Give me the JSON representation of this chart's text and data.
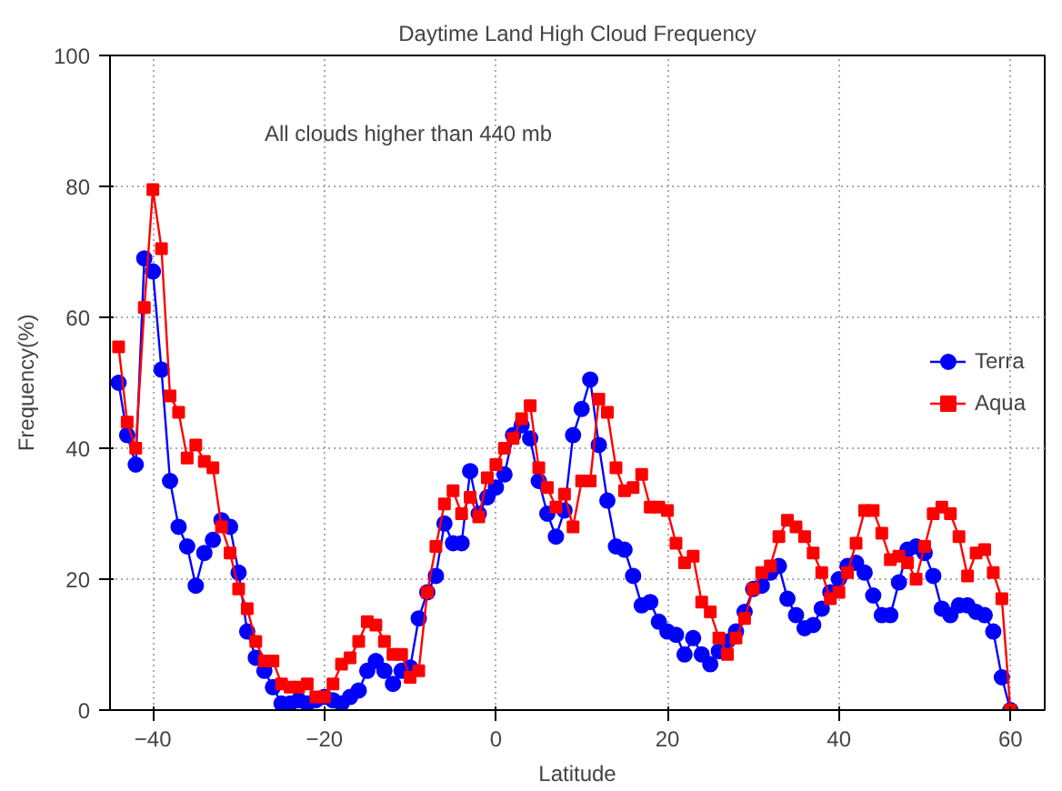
{
  "chart_data": {
    "type": "line",
    "title": "Daytime Land High Cloud Frequency",
    "xlabel": "Latitude",
    "ylabel": "Frequency(%)",
    "annotations": [
      "All clouds higher than 440 mb"
    ],
    "x": [
      -44,
      -43,
      -42,
      -41,
      -40,
      -39,
      -38,
      -37,
      -36,
      -35,
      -34,
      -33,
      -32,
      -31,
      -30,
      -29,
      -28,
      -27,
      -26,
      -25,
      -24,
      -23,
      -22,
      -21,
      -20,
      -19,
      -18,
      -17,
      -16,
      -15,
      -14,
      -13,
      -12,
      -11,
      -10,
      -9,
      -8,
      -7,
      -6,
      -5,
      -4,
      -3,
      -2,
      -1,
      0,
      1,
      2,
      3,
      4,
      5,
      6,
      7,
      8,
      9,
      10,
      11,
      12,
      13,
      14,
      15,
      16,
      17,
      18,
      19,
      20,
      21,
      22,
      23,
      24,
      25,
      26,
      27,
      28,
      29,
      30,
      31,
      32,
      33,
      34,
      35,
      36,
      37,
      38,
      39,
      40,
      41,
      42,
      43,
      44,
      45,
      46,
      47,
      48,
      49,
      50,
      51,
      52,
      53,
      54,
      55,
      56,
      57,
      58,
      59,
      60
    ],
    "series": [
      {
        "name": "Terra",
        "color": "#0000ff",
        "marker": "circle",
        "values": [
          50,
          42,
          37.5,
          69,
          67,
          52,
          35,
          28,
          25,
          19,
          24,
          26,
          29,
          28,
          21,
          12,
          8,
          6,
          3.5,
          1,
          1,
          1.5,
          1,
          1.5,
          2,
          1.5,
          1,
          2,
          3,
          6,
          7.5,
          6,
          4,
          6,
          6.5,
          14,
          18,
          20.5,
          28.5,
          25.5,
          25.5,
          36.5,
          30,
          32.5,
          34,
          36,
          42,
          43.5,
          41.5,
          35,
          30,
          26.5,
          30.5,
          42,
          46,
          50.5,
          40.5,
          32,
          25,
          24.5,
          20.5,
          16,
          16.5,
          13.5,
          12,
          11.5,
          8.5,
          11,
          8.5,
          7,
          9,
          10.5,
          12,
          15,
          18.5,
          19,
          21,
          22,
          17,
          14.5,
          12.5,
          13,
          15.5,
          18,
          20,
          22,
          22.5,
          21,
          17.5,
          14.5,
          14.5,
          19.5,
          24.5,
          25,
          24,
          20.5,
          15.5,
          14.5,
          16,
          16,
          15,
          14.5,
          12,
          5,
          0
        ]
      },
      {
        "name": "Aqua",
        "color": "#ff0000",
        "marker": "square",
        "values": [
          55.5,
          44,
          40,
          61.5,
          79.5,
          70.5,
          48,
          45.5,
          38.5,
          40.5,
          38,
          37,
          28,
          24,
          18.5,
          15.5,
          10.5,
          7.5,
          7.5,
          4,
          3.5,
          3.5,
          4,
          2,
          2,
          4,
          7,
          8,
          10.5,
          13.5,
          13,
          10.5,
          8.5,
          8.5,
          5,
          6,
          18,
          25,
          31.5,
          33.5,
          30,
          32.5,
          29.5,
          35.5,
          37.5,
          40,
          41.5,
          44.5,
          46.5,
          37,
          34,
          31,
          33,
          28,
          35,
          35,
          47.5,
          45.5,
          37,
          33.5,
          34,
          36,
          31,
          31,
          30.5,
          25.5,
          22.5,
          23.5,
          16.5,
          15,
          11,
          8.5,
          11,
          14,
          18.5,
          21,
          22,
          26.5,
          29,
          28,
          26.5,
          24,
          21,
          17,
          18,
          21,
          25.5,
          30.5,
          30.5,
          27,
          23,
          23.5,
          22.5,
          20,
          25,
          30,
          31,
          30,
          26.5,
          20.5,
          24,
          24.5,
          21,
          17,
          0
        ]
      }
    ],
    "xlim": [
      -45,
      64
    ],
    "ylim": [
      0,
      100
    ],
    "xticks": [
      -40,
      -20,
      0,
      20,
      40,
      60
    ],
    "yticks": [
      0,
      20,
      40,
      60,
      80,
      100
    ],
    "grid": true,
    "legend": "right"
  }
}
